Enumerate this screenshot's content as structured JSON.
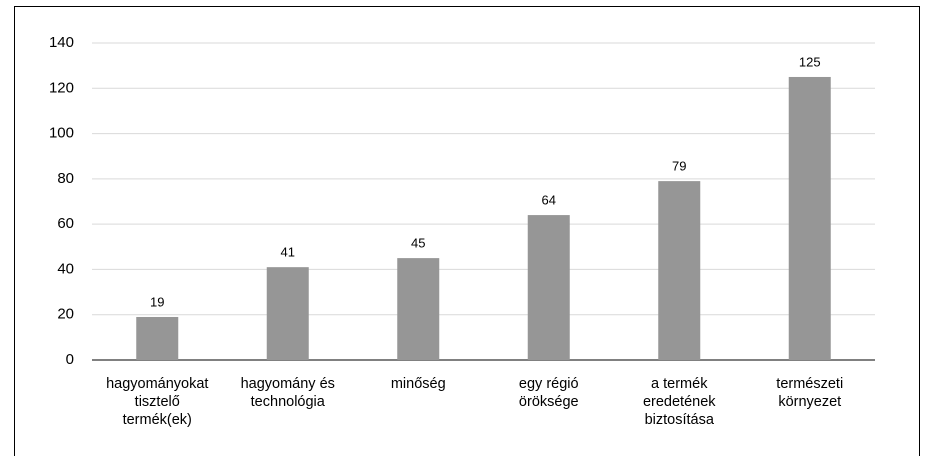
{
  "chart_data": {
    "type": "bar",
    "categories": [
      "hagyományokat tisztelő termék(ek)",
      "hagyomány és technológia",
      "minőség",
      "egy régió öröksége",
      "a termék eredetének biztosítása",
      "természeti környezet"
    ],
    "values": [
      19,
      41,
      45,
      64,
      79,
      125
    ],
    "color": "#969696",
    "ylim": [
      0,
      140
    ],
    "yticks": [
      0,
      20,
      40,
      60,
      80,
      100,
      120,
      140
    ],
    "grid": true
  }
}
